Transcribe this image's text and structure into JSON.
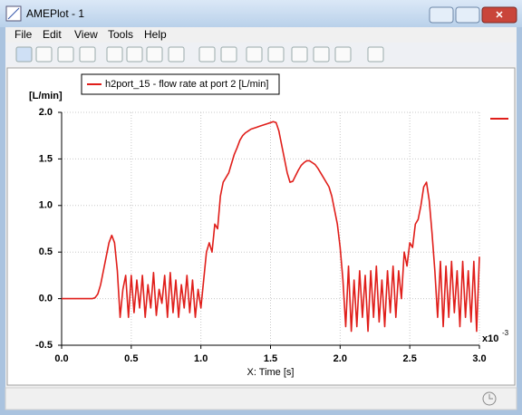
{
  "window": {
    "title": "AMEPlot - 1",
    "menu": [
      "File",
      "Edit",
      "View",
      "Tools",
      "Help"
    ]
  },
  "chart_data": {
    "type": "line",
    "ylabel": "[L/min]",
    "xlabel": "X: Time [s]",
    "x_multiplier": "x10",
    "x_multiplier_exp": "-3",
    "xlim": [
      0,
      3
    ],
    "ylim": [
      -0.5,
      2
    ],
    "xticks": [
      {
        "value": 0,
        "label": "0.0"
      },
      0.5,
      {
        "value": 1,
        "label": "1.0"
      },
      1.5,
      {
        "value": 2,
        "label": "2.0"
      },
      2.5,
      {
        "value": 3,
        "label": "3.0"
      }
    ],
    "yticks": [
      -0.5,
      {
        "value": 0,
        "label": "0.0"
      },
      0.5,
      {
        "value": 1,
        "label": "1.0"
      },
      1.5,
      {
        "value": 2,
        "label": "2.0"
      }
    ],
    "grid": true,
    "x": [
      0,
      0.02,
      0.04,
      0.06,
      0.08,
      0.1,
      0.12,
      0.14,
      0.16,
      0.18,
      0.2,
      0.22,
      0.24,
      0.26,
      0.28,
      0.3,
      0.32,
      0.34,
      0.36,
      0.38,
      0.4,
      0.42,
      0.44,
      0.46,
      0.48,
      0.5,
      0.52,
      0.54,
      0.56,
      0.58,
      0.6,
      0.62,
      0.64,
      0.66,
      0.68,
      0.7,
      0.72,
      0.74,
      0.76,
      0.78,
      0.8,
      0.82,
      0.84,
      0.86,
      0.88,
      0.9,
      0.92,
      0.94,
      0.96,
      0.98,
      1,
      1.02,
      1.04,
      1.06,
      1.08,
      1.1,
      1.12,
      1.14,
      1.16,
      1.18,
      1.2,
      1.22,
      1.24,
      1.26,
      1.28,
      1.3,
      1.32,
      1.34,
      1.36,
      1.38,
      1.4,
      1.42,
      1.44,
      1.46,
      1.48,
      1.5,
      1.52,
      1.54,
      1.56,
      1.58,
      1.6,
      1.62,
      1.64,
      1.66,
      1.68,
      1.7,
      1.72,
      1.74,
      1.76,
      1.78,
      1.8,
      1.82,
      1.84,
      1.86,
      1.88,
      1.9,
      1.92,
      1.94,
      1.96,
      1.98,
      2,
      2.02,
      2.04,
      2.06,
      2.08,
      2.1,
      2.12,
      2.14,
      2.16,
      2.18,
      2.2,
      2.22,
      2.24,
      2.26,
      2.28,
      2.3,
      2.32,
      2.34,
      2.36,
      2.38,
      2.4,
      2.42,
      2.44,
      2.46,
      2.48,
      2.5,
      2.52,
      2.54,
      2.56,
      2.58,
      2.6,
      2.62,
      2.64,
      2.66,
      2.68,
      2.7,
      2.72,
      2.74,
      2.76,
      2.78,
      2.8,
      2.82,
      2.84,
      2.86,
      2.88,
      2.9,
      2.92,
      2.94,
      2.96,
      2.98,
      3
    ],
    "series": [
      {
        "name": "h2port_15 - flow rate at port 2 [L/min]",
        "color": "#e01e1a",
        "values": [
          0,
          0,
          0,
          0,
          0,
          0,
          0,
          0,
          0,
          0,
          0,
          0,
          0.01,
          0.05,
          0.15,
          0.3,
          0.45,
          0.6,
          0.68,
          0.6,
          0.3,
          -0.2,
          0.1,
          0.25,
          -0.2,
          0.25,
          -0.15,
          0.2,
          -0.1,
          0.25,
          -0.2,
          0.15,
          -0.1,
          0.28,
          -0.18,
          0.1,
          -0.05,
          0.25,
          -0.2,
          0.28,
          -0.15,
          0.2,
          -0.2,
          0.15,
          -0.1,
          0.25,
          -0.15,
          0.2,
          -0.2,
          0.1,
          -0.1,
          0.2,
          0.5,
          0.6,
          0.5,
          0.8,
          0.75,
          1.1,
          1.25,
          1.3,
          1.35,
          1.45,
          1.55,
          1.62,
          1.7,
          1.75,
          1.78,
          1.8,
          1.82,
          1.83,
          1.84,
          1.85,
          1.86,
          1.87,
          1.88,
          1.89,
          1.9,
          1.89,
          1.8,
          1.65,
          1.5,
          1.35,
          1.25,
          1.26,
          1.32,
          1.38,
          1.43,
          1.46,
          1.48,
          1.48,
          1.46,
          1.44,
          1.4,
          1.35,
          1.3,
          1.25,
          1.2,
          1.1,
          0.95,
          0.8,
          0.55,
          0.2,
          -0.3,
          0.35,
          -0.35,
          0.2,
          -0.3,
          0.3,
          -0.2,
          0.25,
          -0.35,
          0.3,
          -0.2,
          0.35,
          -0.25,
          0.2,
          -0.3,
          0.3,
          -0.15,
          0.35,
          -0.2,
          0.3,
          0,
          0.5,
          0.35,
          0.6,
          0.55,
          0.8,
          0.85,
          1,
          1.2,
          1.25,
          1.05,
          0.7,
          0.3,
          -0.2,
          0.4,
          -0.3,
          0.35,
          -0.2,
          0.4,
          -0.15,
          0.3,
          -0.3,
          0.4,
          -0.2,
          0.3,
          -0.25,
          0.4,
          -0.35,
          0.45
        ]
      }
    ]
  }
}
